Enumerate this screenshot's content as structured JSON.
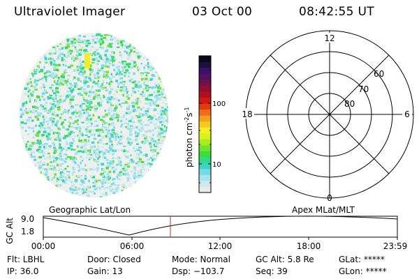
{
  "header": {
    "instrument": "Ultraviolet Imager",
    "date": "03 Oct 00",
    "time": "08:42:55 UT"
  },
  "colorbar": {
    "unit_label": "photon cm",
    "unit_sup1": "-2",
    "unit_s": "s",
    "unit_sup2": "-1",
    "ticks": [
      "100",
      "10"
    ],
    "colors": [
      "#e8eaea",
      "#cfe7ea",
      "#a6e3ea",
      "#74dbe4",
      "#3fd3c8",
      "#2fd88a",
      "#3cdc3c",
      "#6ee42a",
      "#a8ee1e",
      "#d8f21a",
      "#f4f020",
      "#f6c91e",
      "#f3a01a",
      "#ee6e16",
      "#e33a12",
      "#cf1a14",
      "#b40f1e",
      "#930d30",
      "#721048",
      "#551160",
      "#3a1070",
      "#1e1038",
      "#0c0a1a"
    ]
  },
  "polar_plot": {
    "labels": {
      "top": "12",
      "bottom": "0",
      "left": "18",
      "right": "6",
      "lat60": "60",
      "lat70": "70",
      "lat80": "80"
    }
  },
  "timeline": {
    "left_title": "Geographic Lat/Lon",
    "right_title": "Apex MLat/MLT",
    "axis_title": "GC Alt",
    "y_ticks": [
      "9.0",
      "1.8"
    ],
    "x_ticks": [
      "00:00",
      "06:00",
      "12:00",
      "18:00",
      "23:59"
    ],
    "line_color": "#cc2a2a"
  },
  "status": {
    "flt": "Flt: LBHL",
    "ip": "IP: 36.0",
    "door": "Door: Closed",
    "gain": "Gain: 13",
    "mode": "Mode: Normal",
    "dsp": "Dsp: −103.7",
    "gcalt": "GC Alt: 5.8 Re",
    "seq": "Seq: 39",
    "glat": "GLat: *****",
    "glon": "GLon: *****"
  }
}
